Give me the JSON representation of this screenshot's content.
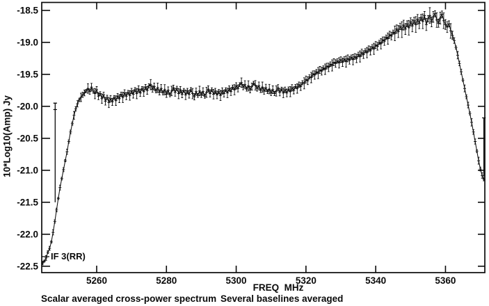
{
  "page": {
    "background": "#ffffff",
    "line_color": "#0a0a0a"
  },
  "chart_data": {
    "type": "line",
    "title": "",
    "xlabel": "FREQ  MHz",
    "ylabel": "10*Log10(Amp) Jy",
    "if_label": "IF 3(RR)",
    "captions": {
      "left": "Scalar averaged cross-power spectrum",
      "right": "Several baselines averaged"
    },
    "legend": null,
    "grid": false,
    "marker": "plus",
    "xlim": [
      5244.25,
      5371.28
    ],
    "ylim": [
      -22.6,
      -18.375
    ],
    "xticks": [
      5260,
      5280,
      5300,
      5320,
      5340,
      5360
    ],
    "yticks": [
      -22.5,
      -22.0,
      -21.5,
      -21.0,
      -20.5,
      -20.0,
      -19.5,
      -19.0,
      -18.5
    ],
    "series": {
      "name": "scalar-averaged cross-power spectrum",
      "x_start": 5244.5,
      "x_step": 0.5,
      "y": [
        -22.45,
        -22.42,
        -22.37,
        -22.28,
        -22.22,
        -22.12,
        -21.97,
        -21.8,
        -21.62,
        -21.44,
        -21.27,
        -21.13,
        -20.99,
        -20.85,
        -20.71,
        -20.55,
        -20.4,
        -20.27,
        -20.14,
        -20.04,
        -19.96,
        -19.9,
        -19.86,
        -19.82,
        -19.79,
        -19.76,
        -19.72,
        -19.77,
        -19.7,
        -19.76,
        -19.8,
        -19.74,
        -19.84,
        -19.8,
        -19.88,
        -19.82,
        -19.92,
        -19.86,
        -19.94,
        -19.88,
        -19.93,
        -19.86,
        -19.91,
        -19.84,
        -19.88,
        -19.81,
        -19.86,
        -19.79,
        -19.84,
        -19.78,
        -19.83,
        -19.76,
        -19.81,
        -19.74,
        -19.8,
        -19.73,
        -19.79,
        -19.72,
        -19.77,
        -19.7,
        -19.75,
        -19.68,
        -19.66,
        -19.73,
        -19.69,
        -19.76,
        -19.71,
        -19.78,
        -19.72,
        -19.79,
        -19.74,
        -19.81,
        -19.75,
        -19.82,
        -19.76,
        -19.71,
        -19.78,
        -19.72,
        -19.8,
        -19.74,
        -19.81,
        -19.75,
        -19.82,
        -19.76,
        -19.81,
        -19.74,
        -19.8,
        -19.85,
        -19.77,
        -19.83,
        -19.76,
        -19.82,
        -19.77,
        -19.84,
        -19.78,
        -19.73,
        -19.8,
        -19.74,
        -19.81,
        -19.76,
        -19.82,
        -19.77,
        -19.83,
        -19.76,
        -19.8,
        -19.74,
        -19.79,
        -19.72,
        -19.77,
        -19.7,
        -19.74,
        -19.68,
        -19.72,
        -19.66,
        -19.63,
        -19.7,
        -19.66,
        -19.73,
        -19.68,
        -19.74,
        -19.69,
        -19.64,
        -19.67,
        -19.72,
        -19.68,
        -19.75,
        -19.7,
        -19.76,
        -19.71,
        -19.77,
        -19.73,
        -19.79,
        -19.74,
        -19.8,
        -19.76,
        -19.71,
        -19.78,
        -19.73,
        -19.79,
        -19.74,
        -19.79,
        -19.73,
        -19.77,
        -19.71,
        -19.75,
        -19.69,
        -19.72,
        -19.66,
        -19.69,
        -19.63,
        -19.64,
        -19.58,
        -19.6,
        -19.54,
        -19.55,
        -19.49,
        -19.51,
        -19.46,
        -19.48,
        -19.43,
        -19.45,
        -19.4,
        -19.42,
        -19.37,
        -19.39,
        -19.34,
        -19.36,
        -19.31,
        -19.33,
        -19.29,
        -19.32,
        -19.27,
        -19.31,
        -19.26,
        -19.3,
        -19.25,
        -19.28,
        -19.23,
        -19.27,
        -19.22,
        -19.25,
        -19.19,
        -19.22,
        -19.16,
        -19.19,
        -19.13,
        -19.16,
        -19.1,
        -19.13,
        -19.07,
        -19.1,
        -19.04,
        -19.06,
        -19.0,
        -19.02,
        -18.96,
        -18.98,
        -18.92,
        -18.94,
        -18.88,
        -18.9,
        -18.84,
        -18.86,
        -18.79,
        -18.83,
        -18.75,
        -18.8,
        -18.73,
        -18.79,
        -18.71,
        -18.77,
        -18.68,
        -18.74,
        -18.66,
        -18.72,
        -18.64,
        -18.7,
        -18.61,
        -18.67,
        -18.58,
        -18.72,
        -18.63,
        -18.58,
        -18.68,
        -18.6,
        -18.55,
        -18.65,
        -18.7,
        -18.62,
        -18.56,
        -18.66,
        -18.72,
        -18.76,
        -18.71,
        -18.82,
        -18.89,
        -18.97,
        -19.08,
        -19.2,
        -19.33,
        -19.46,
        -19.59,
        -19.72,
        -19.85,
        -19.98,
        -20.11,
        -20.25,
        -20.4,
        -20.55,
        -20.7,
        -20.85,
        -20.98,
        -21.08,
        -21.14
      ]
    },
    "error_bars": {
      "segments": [
        {
          "from": 5244.5,
          "to": 5253.0,
          "e": 0.028
        },
        {
          "from": 5253.0,
          "to": 5257.5,
          "e": 0.045
        },
        {
          "from": 5257.5,
          "to": 5319.5,
          "e": 0.055
        },
        {
          "from": 5319.5,
          "to": 5345.5,
          "e": 0.06
        },
        {
          "from": 5345.5,
          "to": 5362.5,
          "e": 0.085
        },
        {
          "from": 5362.5,
          "to": 5371.1,
          "e": 0.04
        }
      ],
      "pattern": [
        1.0,
        0.55,
        1.35,
        0.75,
        1.1,
        0.6,
        1.45,
        0.9
      ]
    },
    "spikes": [
      {
        "x": 5248.1,
        "y_top": -19.95,
        "y_bottom": -21.5,
        "marker_y": -20.05
      },
      {
        "x": 5371.0,
        "y_top": -20.18,
        "y_bottom": -21.1,
        "marker_y": -20.18
      }
    ]
  }
}
